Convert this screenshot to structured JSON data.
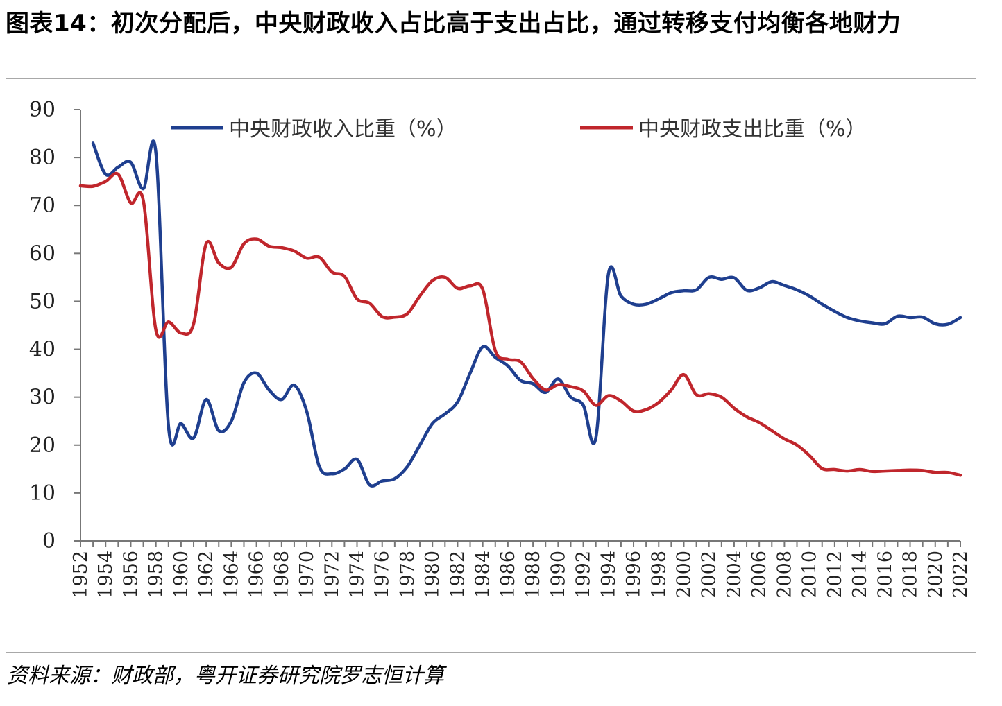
{
  "title": "图表14：初次分配后，中央财政收入占比高于支出占比，通过转移支付均衡各地财力",
  "source": "资料来源：财政部，粤开证券研究院罗志恒计算",
  "chart_data": {
    "type": "line",
    "x": [
      1952,
      1953,
      1954,
      1955,
      1956,
      1957,
      1958,
      1959,
      1960,
      1961,
      1962,
      1963,
      1964,
      1965,
      1966,
      1967,
      1968,
      1969,
      1970,
      1971,
      1972,
      1973,
      1974,
      1975,
      1976,
      1977,
      1978,
      1979,
      1980,
      1981,
      1982,
      1983,
      1984,
      1985,
      1986,
      1987,
      1988,
      1989,
      1990,
      1991,
      1992,
      1993,
      1994,
      1995,
      1996,
      1997,
      1998,
      1999,
      2000,
      2001,
      2002,
      2003,
      2004,
      2005,
      2006,
      2007,
      2008,
      2009,
      2010,
      2011,
      2012,
      2013,
      2014,
      2015,
      2016,
      2017,
      2018,
      2019,
      2020,
      2021,
      2022
    ],
    "x_ticks": [
      "1952",
      "1954",
      "1956",
      "1958",
      "1960",
      "1962",
      "1964",
      "1966",
      "1968",
      "1970",
      "1972",
      "1974",
      "1976",
      "1978",
      "1980",
      "1982",
      "1984",
      "1986",
      "1988",
      "1990",
      "1992",
      "1994",
      "1996",
      "1998",
      "2000",
      "2002",
      "2004",
      "2006",
      "2008",
      "2010",
      "2012",
      "2014",
      "2016",
      "2018",
      "2020",
      "2022"
    ],
    "y_ticks": [
      "0",
      "10",
      "20",
      "30",
      "40",
      "50",
      "60",
      "70",
      "80",
      "90"
    ],
    "ylim": [
      0,
      90
    ],
    "grid": false,
    "legend_position": "top",
    "series": [
      {
        "name": "中央财政收入比重（%）",
        "color": "#1f3f8f",
        "values": [
          null,
          83,
          76.5,
          78,
          79,
          73.5,
          81,
          24,
          24.5,
          21.5,
          29.5,
          23,
          25,
          33,
          35,
          31.5,
          29.5,
          32.5,
          27,
          15.5,
          14,
          15,
          17,
          11.7,
          12.5,
          13,
          15.5,
          20,
          24.5,
          26.5,
          29,
          35,
          40.5,
          38.3,
          36.5,
          33.5,
          32.8,
          31,
          33.8,
          30,
          28.3,
          21.5,
          55.7,
          51.1,
          49.4,
          49.4,
          50.5,
          51.8,
          52.2,
          52.4,
          55,
          54.6,
          54.9,
          52.3,
          52.8,
          54.1,
          53.3,
          52.4,
          51.1,
          49.4,
          47.9,
          46.6,
          45.9,
          45.5,
          45.3,
          46.9,
          46.6,
          46.7,
          45.3,
          45.2,
          46.6
        ]
      },
      {
        "name": "中央财政支出比重（%）",
        "color": "#c0262c",
        "values": [
          74.1,
          74,
          75,
          76.5,
          70.5,
          71,
          44,
          45.7,
          43.4,
          45.3,
          62,
          58,
          57.1,
          62,
          63,
          61.5,
          61.2,
          60.5,
          59,
          59.2,
          56.1,
          55.2,
          50.5,
          49.6,
          46.8,
          46.7,
          47.4,
          51.1,
          54.3,
          55,
          52.7,
          53.2,
          52.5,
          39.7,
          37.9,
          37.4,
          33.9,
          31.5,
          32.6,
          32.2,
          31.3,
          28.3,
          30.3,
          29.2,
          27.1,
          27.4,
          28.9,
          31.5,
          34.7,
          30.5,
          30.7,
          30,
          27.7,
          25.9,
          24.7,
          23,
          21.3,
          20,
          17.8,
          15.1,
          14.9,
          14.6,
          14.9,
          14.5,
          14.6,
          14.7,
          14.8,
          14.7,
          14.3,
          14.3,
          13.7
        ]
      }
    ]
  }
}
